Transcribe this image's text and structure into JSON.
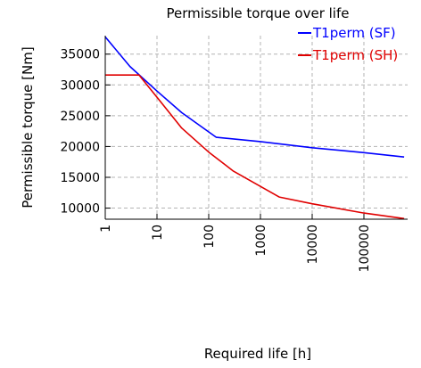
{
  "chart_data": {
    "type": "line",
    "title": "Permissible torque over life",
    "xlabel": "Required life [h]",
    "ylabel": "Permissible torque [Nm]",
    "x_scale": "log",
    "xlim": [
      1,
      700000
    ],
    "ylim": [
      8200,
      38000
    ],
    "x_ticks": [
      1,
      10,
      100,
      1000,
      10000,
      100000
    ],
    "x_tick_labels": [
      "1",
      "10",
      "100",
      "1000",
      "10000",
      "100000"
    ],
    "y_ticks": [
      10000,
      15000,
      20000,
      25000,
      30000,
      35000
    ],
    "y_tick_labels": [
      "10000",
      "15000",
      "20000",
      "25000",
      "30000",
      "35000"
    ],
    "grid": true,
    "legend_position": "top-right",
    "series": [
      {
        "name": "T1perm (SF)",
        "color": "#0000ff",
        "x": [
          1,
          3,
          10,
          30,
          140,
          1000,
          10000,
          100000,
          600000
        ],
        "y": [
          37800,
          33000,
          29000,
          25500,
          21500,
          20800,
          19800,
          19000,
          18300
        ]
      },
      {
        "name": "T1perm (SH)",
        "color": "#e00000",
        "x": [
          1,
          4.5,
          10,
          30,
          100,
          300,
          2300,
          10000,
          100000,
          600000
        ],
        "y": [
          31600,
          31600,
          28000,
          23000,
          19100,
          16000,
          11800,
          10700,
          9200,
          8300
        ]
      }
    ]
  }
}
